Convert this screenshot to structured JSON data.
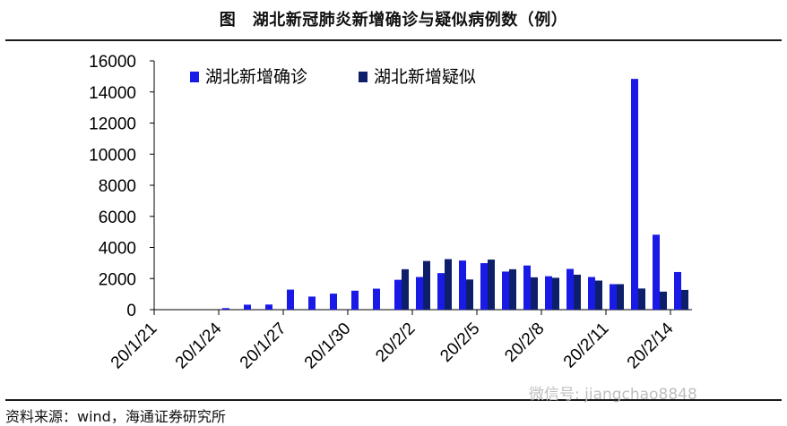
{
  "header": {
    "title": "图　湖北新冠肺炎新增确诊与疑似病例数（例）"
  },
  "footer": {
    "source": "资料来源：wind，海通证券研究所"
  },
  "watermark": {
    "text": "微信号: jiangchao8848"
  },
  "colors": {
    "confirmed": "#1a1ae6",
    "suspected": "#0d1f6b"
  },
  "chart_data": {
    "type": "bar",
    "title": "图　湖北新冠肺炎新增确诊与疑似病例数（例）",
    "xlabel": "",
    "ylabel": "",
    "ylim": [
      0,
      16000
    ],
    "yticks": [
      0,
      2000,
      4000,
      6000,
      8000,
      10000,
      12000,
      14000,
      16000
    ],
    "grid": false,
    "legend": "top",
    "categories": [
      "20/1/21",
      "20/1/22",
      "20/1/23",
      "20/1/24",
      "20/1/25",
      "20/1/26",
      "20/1/27",
      "20/1/28",
      "20/1/29",
      "20/1/30",
      "20/1/31",
      "20/2/1",
      "20/2/2",
      "20/2/3",
      "20/2/4",
      "20/2/5",
      "20/2/6",
      "20/2/7",
      "20/2/8",
      "20/2/9",
      "20/2/10",
      "20/2/11",
      "20/2/12",
      "20/2/13",
      "20/2/14"
    ],
    "xtick_labels": [
      "20/1/21",
      "20/1/24",
      "20/1/27",
      "20/1/30",
      "20/2/2",
      "20/2/5",
      "20/2/8",
      "20/2/11",
      "20/2/14"
    ],
    "series": [
      {
        "name": "湖北新增确诊",
        "values": [
          0,
          0,
          0,
          100,
          320,
          330,
          1290,
          840,
          1030,
          1220,
          1350,
          1920,
          2100,
          2350,
          3160,
          2990,
          2450,
          2840,
          2150,
          2620,
          2100,
          1640,
          14840,
          4820,
          2420
        ]
      },
      {
        "name": "湖北新增疑似",
        "values": [
          0,
          0,
          0,
          0,
          0,
          0,
          0,
          0,
          0,
          0,
          0,
          2600,
          3130,
          3250,
          1940,
          3220,
          2600,
          2080,
          2050,
          2250,
          1870,
          1640,
          1360,
          1160,
          1270
        ]
      }
    ]
  }
}
